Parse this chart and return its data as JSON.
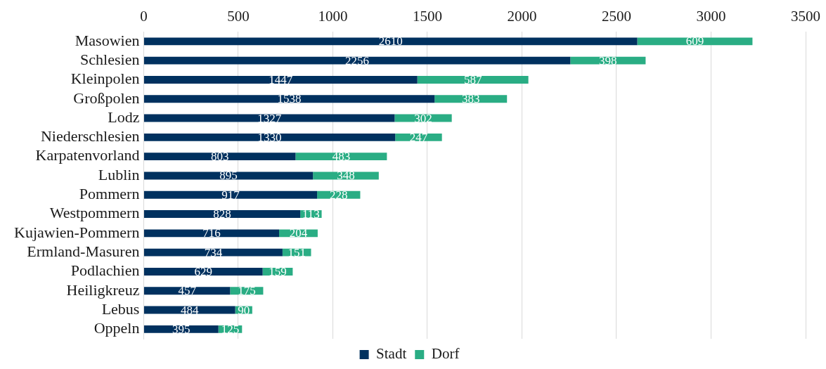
{
  "chart_data": {
    "type": "bar",
    "orientation": "horizontal",
    "stacked": true,
    "categories": [
      "Masowien",
      "Schlesien",
      "Kleinpolen",
      "Großpolen",
      "Lodz",
      "Niederschlesien",
      "Karpatenvorland",
      "Lublin",
      "Pommern",
      "Westpommern",
      "Kujawien-Pommern",
      "Ermland-Masuren",
      "Podlachien",
      "Heiligkreuz",
      "Lebus",
      "Oppeln"
    ],
    "series": [
      {
        "name": "Stadt",
        "color": "#00315f",
        "values": [
          2610,
          2256,
          1447,
          1538,
          1327,
          1330,
          803,
          895,
          917,
          828,
          716,
          734,
          629,
          457,
          484,
          395
        ]
      },
      {
        "name": "Dorf",
        "color": "#2aad84",
        "values": [
          609,
          398,
          587,
          383,
          302,
          247,
          483,
          348,
          228,
          113,
          204,
          151,
          159,
          175,
          90,
          125
        ]
      }
    ],
    "xlim": [
      0,
      3500
    ],
    "xticks": [
      0,
      500,
      1000,
      1500,
      2000,
      2500,
      3000,
      3500
    ],
    "grid": "x",
    "legend": "bottom",
    "data_labels": true
  }
}
